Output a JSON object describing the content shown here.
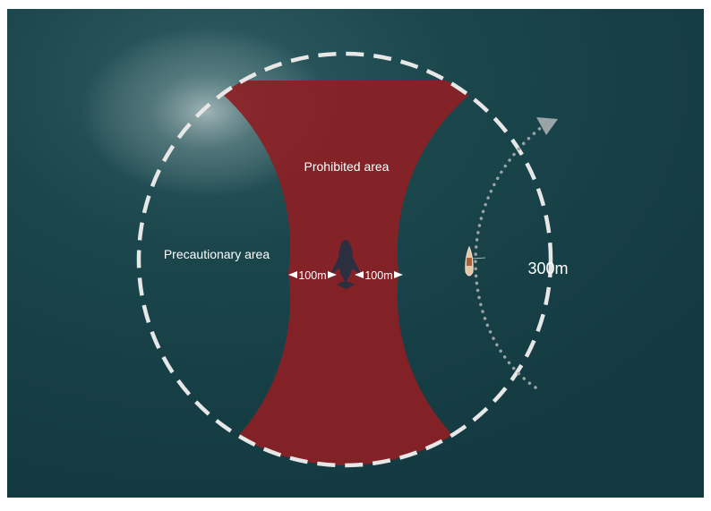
{
  "labels": {
    "prohibited_area": "Prohibited area",
    "precautionary_area": "Precautionary area",
    "left_distance": "100m",
    "right_distance": "100m",
    "radius": "300m"
  },
  "icons": {
    "whale": "whale-icon",
    "boat": "boat-icon",
    "arrow": "dotted-curved-arrow"
  },
  "colors": {
    "water": "#173f45",
    "prohibited_fill": "#8c1f24",
    "boundary_dashes": "#e7e7e7",
    "arrow_dots": "#9aa3a6",
    "text": "#ffffff"
  }
}
